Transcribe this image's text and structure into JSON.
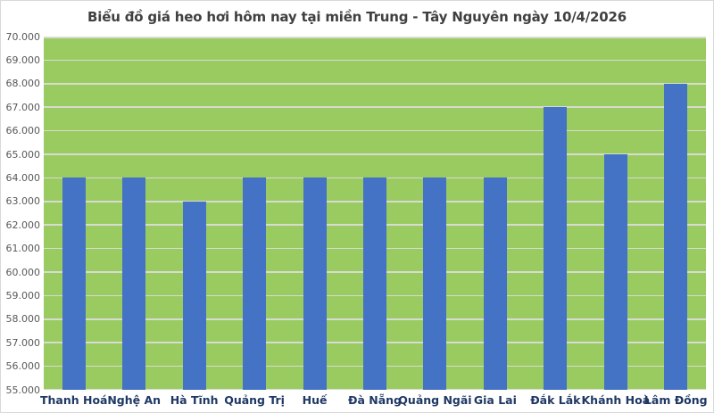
{
  "chart_data": {
    "type": "bar",
    "title": "Biểu đồ giá heo hơi hôm nay tại miền Trung - Tây Nguyên ngày 10/4/2026",
    "categories": [
      "Thanh Hoá",
      "Nghệ An",
      "Hà Tĩnh",
      "Quảng Trị",
      "Huế",
      "Đà Nẵng",
      "Quảng Ngãi",
      "Gia Lai",
      "Đắk Lắk",
      "Khánh Hoà",
      "Lâm Đồng"
    ],
    "values": [
      64000,
      64000,
      63000,
      64000,
      64000,
      64000,
      64000,
      64000,
      67000,
      65000,
      68000
    ],
    "xlabel": "",
    "ylabel": "",
    "ylim": [
      55000,
      70000
    ],
    "ytick_step": 1000,
    "ytick_labels": [
      "55.000",
      "56.000",
      "57.000",
      "58.000",
      "59.000",
      "60.000",
      "61.000",
      "62.000",
      "63.000",
      "64.000",
      "65.000",
      "66.000",
      "67.000",
      "68.000",
      "69.000",
      "70.000"
    ],
    "grid": true,
    "legend_position": "none",
    "colors": {
      "bar": "#4472C4",
      "plot_background": "#9ACB60",
      "gridline": "#D7DBD2",
      "title_text": "#404040",
      "ytick_text": "#595959",
      "xtick_text": "#1F3864",
      "chart_border": "#D9D9D9"
    }
  }
}
